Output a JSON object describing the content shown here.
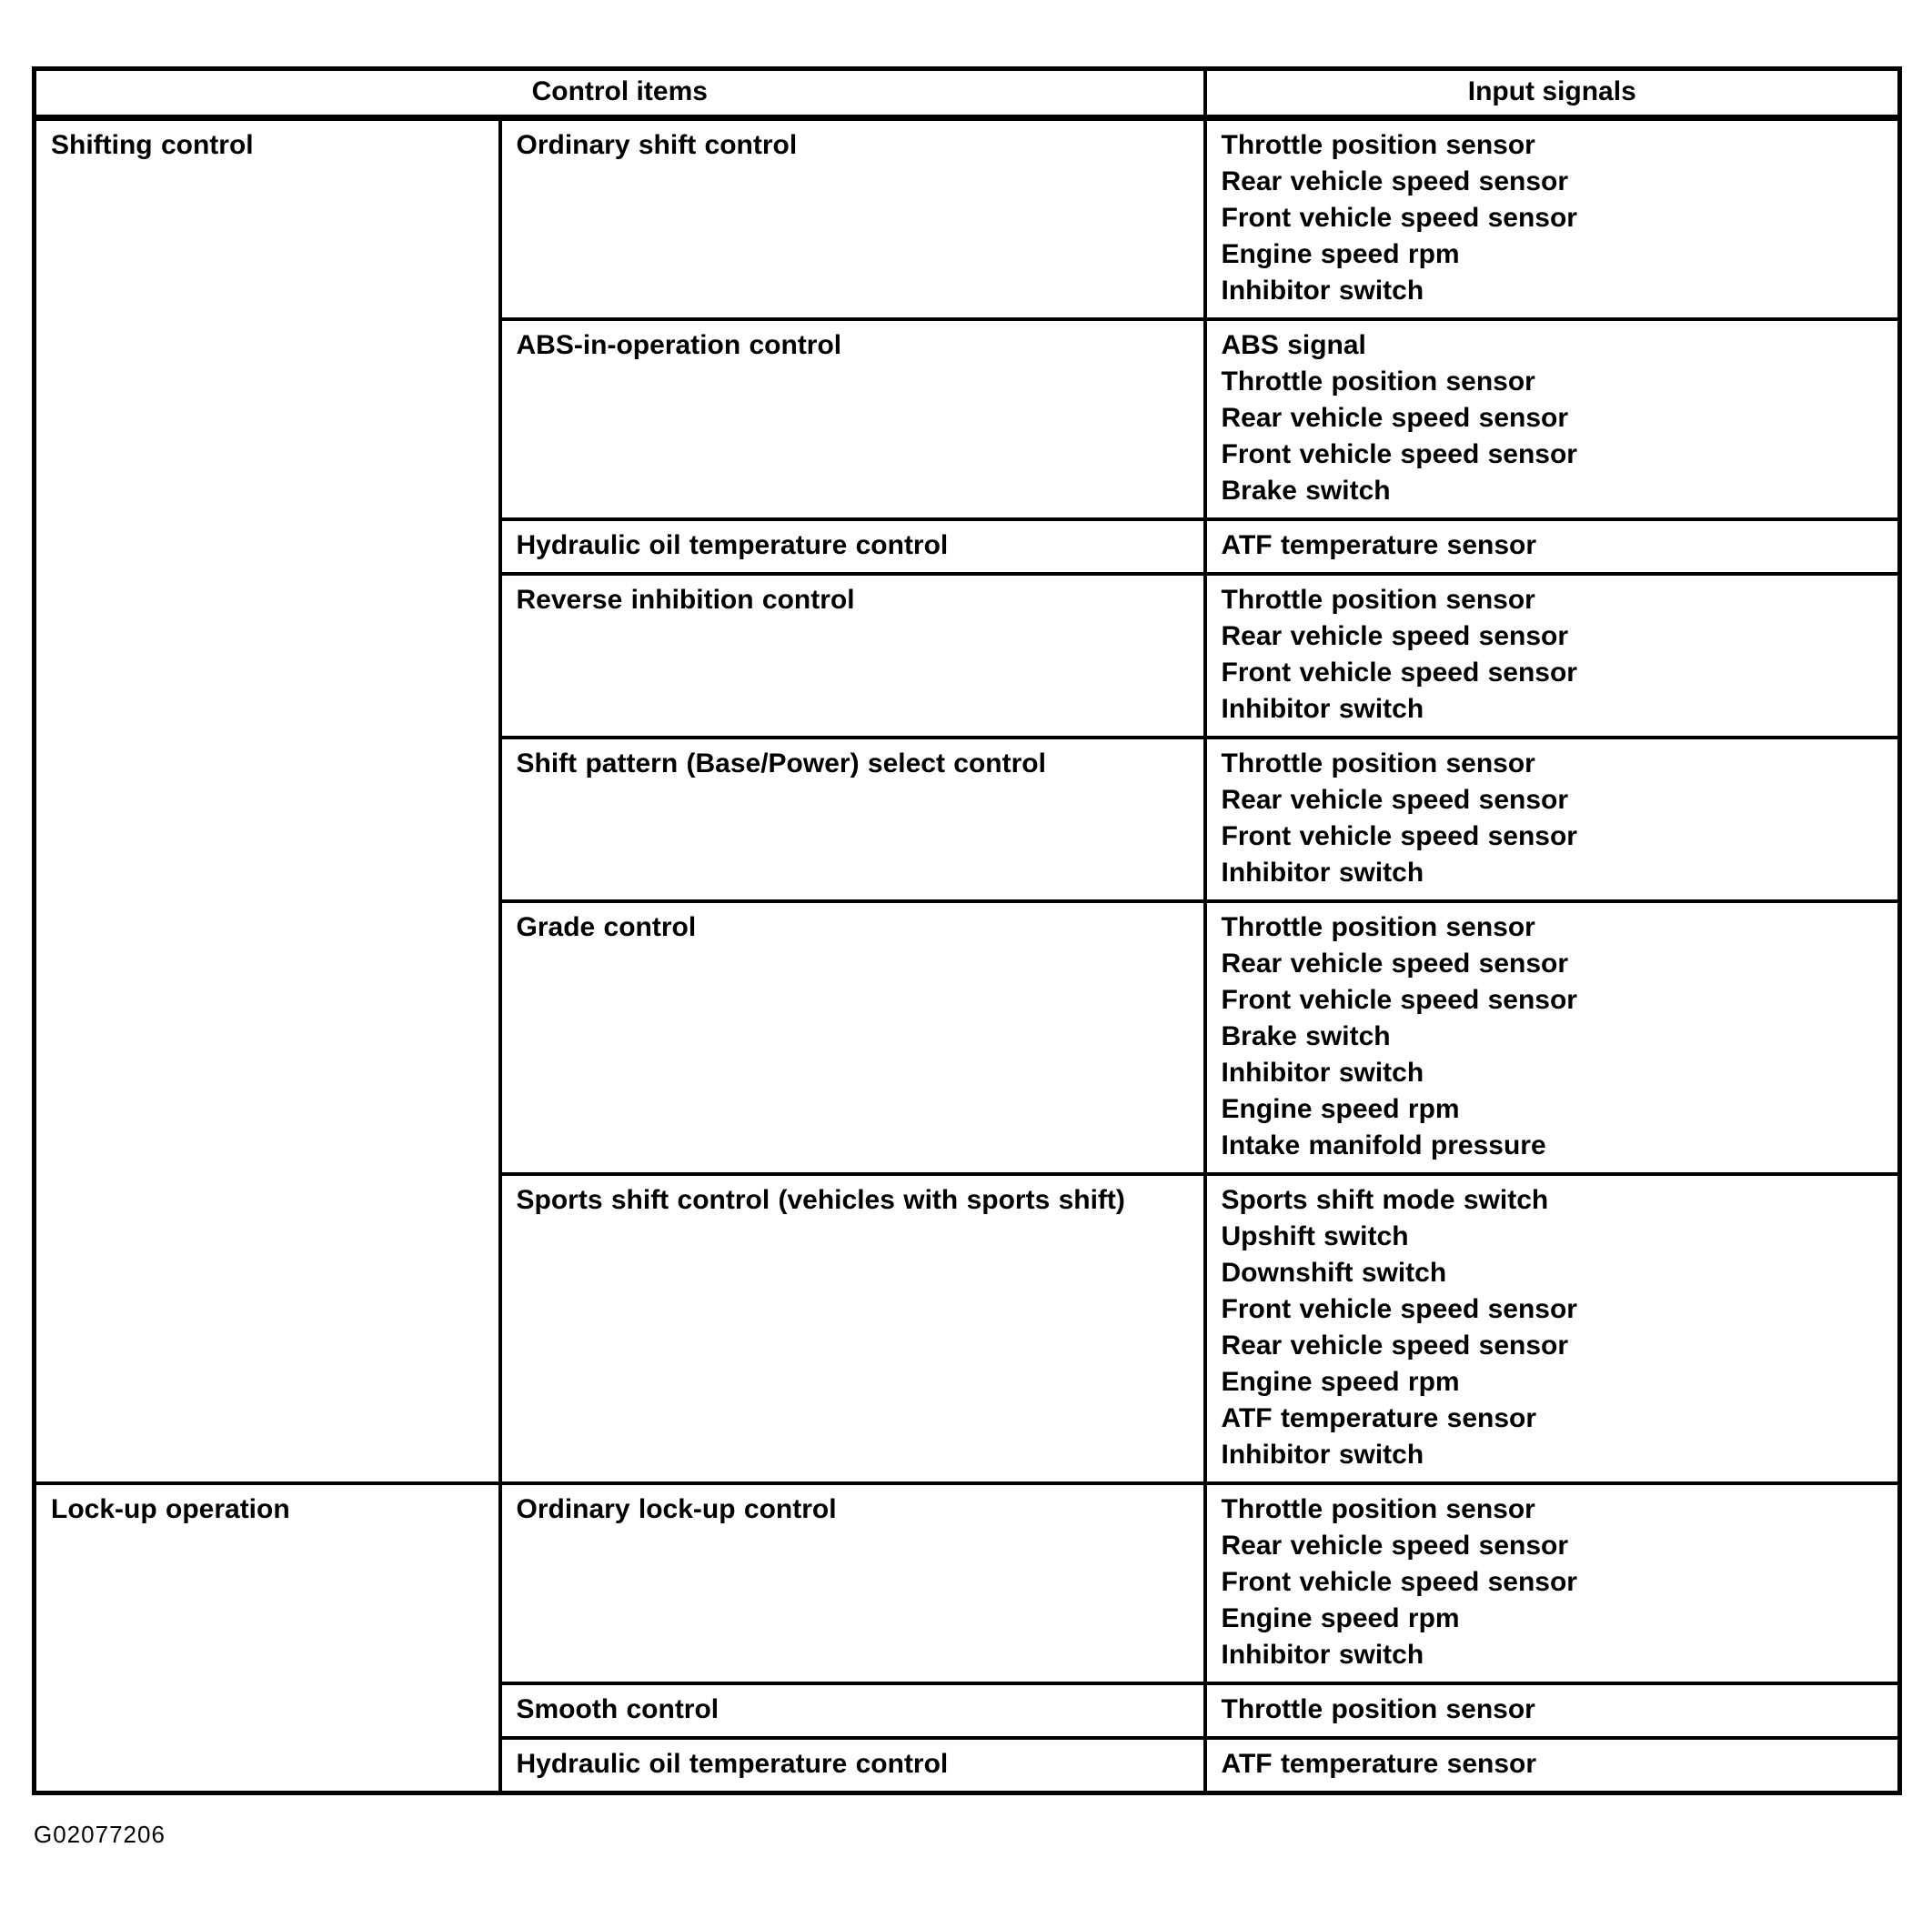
{
  "figure_id": "G02077206",
  "colors": {
    "background": "#ffffff",
    "border": "#000000",
    "text": "#000000"
  },
  "table": {
    "headers": {
      "control_items": "Control items",
      "input_signals": "Input signals"
    },
    "groups": [
      {
        "name": "Shifting control",
        "rows": [
          {
            "control": "Ordinary shift control",
            "signals": [
              "Throttle position sensor",
              "Rear vehicle speed sensor",
              "Front vehicle speed sensor",
              "Engine speed rpm",
              "Inhibitor switch"
            ]
          },
          {
            "control": "ABS-in-operation control",
            "signals": [
              "ABS signal",
              "Throttle position sensor",
              "Rear vehicle speed sensor",
              "Front vehicle speed sensor",
              "Brake switch"
            ]
          },
          {
            "control": "Hydraulic oil temperature control",
            "signals": [
              "ATF temperature sensor"
            ]
          },
          {
            "control": "Reverse inhibition control",
            "signals": [
              "Throttle position sensor",
              "Rear vehicle speed sensor",
              "Front vehicle speed sensor",
              "Inhibitor switch"
            ]
          },
          {
            "control": "Shift pattern (Base/Power) select control",
            "signals": [
              "Throttle position sensor",
              "Rear vehicle speed sensor",
              "Front vehicle speed sensor",
              "Inhibitor switch"
            ]
          },
          {
            "control": "Grade control",
            "signals": [
              "Throttle position sensor",
              "Rear vehicle speed sensor",
              "Front vehicle speed sensor",
              "Brake switch",
              "Inhibitor switch",
              "Engine speed rpm",
              "Intake manifold pressure"
            ]
          },
          {
            "control": "Sports shift control (vehicles with sports shift)",
            "signals": [
              "Sports shift mode switch",
              "Upshift switch",
              "Downshift switch",
              "Front vehicle speed sensor",
              "Rear vehicle speed sensor",
              "Engine speed rpm",
              "ATF temperature sensor",
              "Inhibitor switch"
            ]
          }
        ]
      },
      {
        "name": "Lock-up operation",
        "rows": [
          {
            "control": "Ordinary lock-up control",
            "signals": [
              "Throttle position sensor",
              "Rear vehicle speed sensor",
              "Front vehicle speed sensor",
              "Engine speed rpm",
              "Inhibitor switch"
            ]
          },
          {
            "control": "Smooth control",
            "signals": [
              "Throttle position sensor"
            ]
          },
          {
            "control": "Hydraulic oil temperature control",
            "signals": [
              "ATF temperature sensor"
            ]
          }
        ]
      }
    ]
  }
}
